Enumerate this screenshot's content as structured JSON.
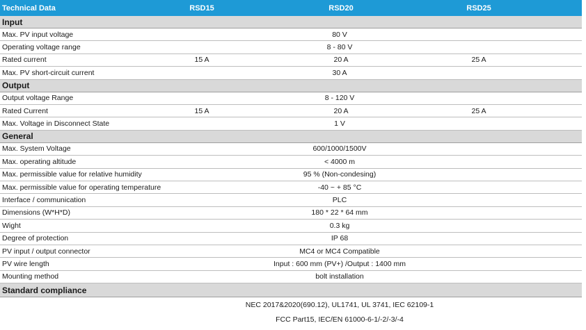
{
  "header": {
    "title": "Technical Data",
    "models": [
      "RSD15",
      "RSD20",
      "RSD25"
    ]
  },
  "sections": [
    {
      "title": "Input",
      "rows": [
        {
          "label": "Max. PV input voltage",
          "values": [
            "80 V"
          ]
        },
        {
          "label": "Operating voltage range",
          "values": [
            "8 - 80 V"
          ]
        },
        {
          "label": "Rated current",
          "values": [
            "15 A",
            "20 A",
            "25 A"
          ]
        },
        {
          "label": "Max. PV short-circuit current",
          "values": [
            "30 A"
          ]
        }
      ]
    },
    {
      "title": "Output",
      "rows": [
        {
          "label": "Output voltage Range",
          "values": [
            "8 - 120 V"
          ]
        },
        {
          "label": "Rated Current",
          "values": [
            "15 A",
            "20 A",
            "25 A"
          ]
        },
        {
          "label": "Max. Voltage in Disconnect State",
          "values": [
            "1 V"
          ]
        }
      ]
    },
    {
      "title": "General",
      "rows": [
        {
          "label": "Max. System Voltage",
          "values": [
            "600/1000/1500V"
          ]
        },
        {
          "label": "Max. operating altitude",
          "values": [
            "< 4000 m"
          ]
        },
        {
          "label": "Max. permissible value for relative humidity",
          "values": [
            "95 % (Non-condesing)"
          ]
        },
        {
          "label": "Max. permissible value for operating temperature",
          "values": [
            "-40 ~ + 85 °C"
          ]
        },
        {
          "label": "Interface / communication",
          "values": [
            "PLC"
          ]
        },
        {
          "label": "Dimensions (W*H*D)",
          "values": [
            "180 * 22 * 64 mm"
          ]
        },
        {
          "label": "Wight",
          "values": [
            "0.3 kg"
          ]
        },
        {
          "label": "Degree of protection",
          "values": [
            "IP 68"
          ]
        },
        {
          "label": "PV input / output connector",
          "values": [
            "MC4 or MC4 Compatible"
          ]
        },
        {
          "label": "PV wire length",
          "values": [
            "Input : 600 mm (PV+) /Output : 1400 mm"
          ]
        },
        {
          "label": "Mounting method",
          "values": [
            "bolt installation"
          ]
        }
      ]
    }
  ],
  "compliance": {
    "title": "Standard compliance",
    "lines": [
      "NEC 2017&2020(690.12), UL1741, UL 3741, IEC 62109-1",
      "FCC Part15, IEC/EN 61000-6-1/-2/-3/-4"
    ]
  }
}
